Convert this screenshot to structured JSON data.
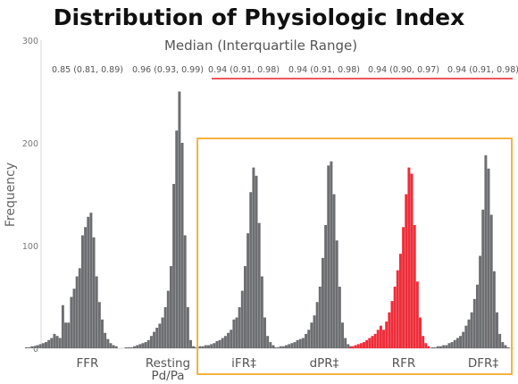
{
  "chart_data": {
    "type": "bar",
    "title": "Distribution of Physiologic Index",
    "subtitle": "Median (Interquartile Range)",
    "ylabel": "Frequency",
    "xlabel": "",
    "ylim": [
      0,
      300
    ],
    "yticks": [
      "0",
      "100",
      "200",
      "300"
    ],
    "grid": false,
    "highlight_box_color": "#f5b342",
    "highlight_line_color": "#e8202a",
    "series": [
      {
        "name": "FFR",
        "label": "FFR",
        "median_iqr": "0.85 (0.81, 0.89)",
        "color": "#6d6e71",
        "values": [
          1,
          1,
          2,
          2,
          3,
          4,
          5,
          6,
          8,
          10,
          14,
          12,
          10,
          42,
          25,
          25,
          50,
          58,
          70,
          78,
          110,
          118,
          128,
          132,
          108,
          70,
          45,
          28,
          15,
          9,
          5,
          3,
          2
        ]
      },
      {
        "name": "Resting Pd/Pa",
        "label": "Resting\nPd/Pa",
        "median_iqr": "0.96 (0.93, 0.99)",
        "color": "#6d6e71",
        "values": [
          1,
          1,
          1,
          2,
          3,
          4,
          5,
          6,
          8,
          12,
          16,
          20,
          24,
          30,
          40,
          56,
          80,
          160,
          212,
          250,
          200,
          110,
          40,
          8,
          2
        ]
      },
      {
        "name": "iFR",
        "label": "iFR‡",
        "median_iqr": "0.94 (0.91, 0.98)",
        "color": "#6d6e71",
        "values": [
          1,
          1,
          1,
          2,
          2,
          3,
          3,
          4,
          5,
          7,
          8,
          10,
          12,
          15,
          18,
          28,
          30,
          40,
          56,
          80,
          112,
          152,
          176,
          168,
          122,
          70,
          30,
          12,
          6,
          3
        ]
      },
      {
        "name": "dPR",
        "label": "dPR‡",
        "median_iqr": "0.94 (0.91, 0.98)",
        "color": "#6d6e71",
        "values": [
          1,
          1,
          2,
          2,
          3,
          4,
          5,
          6,
          8,
          9,
          10,
          14,
          18,
          25,
          32,
          45,
          60,
          88,
          120,
          178,
          182,
          150,
          105,
          60,
          25,
          10,
          4,
          2
        ]
      },
      {
        "name": "RFR",
        "label": "RFR",
        "median_iqr": "0.94 (0.90, 0.97)",
        "color": "#ee2d39",
        "values": [
          1,
          2,
          3,
          4,
          5,
          6,
          8,
          10,
          12,
          14,
          18,
          22,
          18,
          26,
          35,
          46,
          60,
          76,
          92,
          118,
          150,
          176,
          170,
          120,
          65,
          30,
          12,
          5,
          2
        ]
      },
      {
        "name": "DFR",
        "label": "DFR‡",
        "median_iqr": "0.94 (0.91, 0.98)",
        "color": "#6d6e71",
        "values": [
          1,
          1,
          2,
          2,
          3,
          3,
          5,
          6,
          8,
          10,
          12,
          16,
          22,
          28,
          35,
          48,
          62,
          90,
          135,
          188,
          175,
          130,
          75,
          35,
          14,
          6,
          3,
          1
        ]
      }
    ]
  }
}
